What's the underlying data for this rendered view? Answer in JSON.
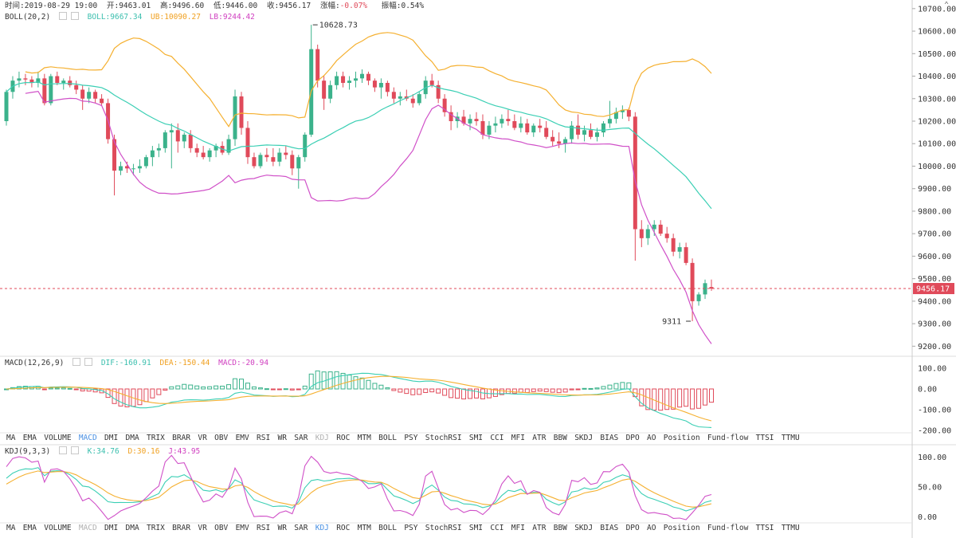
{
  "header": {
    "time_label": "时间:2019-08-29 19:00",
    "open_label": "开:9463.01",
    "high_label": "高:9496.60",
    "low_label": "低:9446.00",
    "close_label": "收:9456.17",
    "change_label": "涨幅:",
    "change_value": "-0.07%",
    "amplitude_label": "振幅:0.54%"
  },
  "boll": {
    "name": "BOLL(20,2)",
    "boll_value": "BOLL:9667.34",
    "ub_value": "UB:10090.27",
    "lb_value": "LB:9244.42"
  },
  "macd": {
    "name": "MACD(12,26,9)",
    "dif_value": "DIF:-160.91",
    "dea_value": "DEA:-150.44",
    "macd_value": "MACD:-20.94",
    "axis": [
      "100.00",
      "0.00",
      "-100.00",
      "-200.00"
    ]
  },
  "kdj": {
    "name": "KDJ(9,3,3)",
    "k_value": "K:34.76",
    "d_value": "D:30.16",
    "j_value": "J:43.95",
    "axis": [
      "100.00",
      "50.00",
      "0.00"
    ]
  },
  "main_axis": [
    "10700.00",
    "10600.00",
    "10500.00",
    "10400.00",
    "10300.00",
    "10200.00",
    "10100.00",
    "10000.00",
    "9900.00",
    "9800.00",
    "9700.00",
    "9600.00",
    "9500.00",
    "9400.00",
    "9300.00",
    "9200.00"
  ],
  "annotations": {
    "max_label": "10628.73",
    "min_label": "9311",
    "last_price": "9456.17"
  },
  "tabs_macd_active": [
    "MA",
    "EMA",
    "VOLUME",
    "MACD",
    "DMI",
    "DMA",
    "TRIX",
    "BRAR",
    "VR",
    "OBV",
    "EMV",
    "RSI",
    "WR",
    "SAR",
    "KDJ",
    "ROC",
    "MTM",
    "BOLL",
    "PSY",
    "StochRSI",
    "SMI",
    "CCI",
    "MFI",
    "ATR",
    "BBW",
    "SKDJ",
    "BIAS",
    "DPO",
    "AO",
    "Position",
    "Fund-flow",
    "TTSI",
    "TTMU"
  ],
  "tabs_kdj_active": [
    "MA",
    "EMA",
    "VOLUME",
    "MACD",
    "DMI",
    "DMA",
    "TRIX",
    "BRAR",
    "VR",
    "OBV",
    "EMV",
    "RSI",
    "WR",
    "SAR",
    "KDJ",
    "ROC",
    "MTM",
    "BOLL",
    "PSY",
    "StochRSI",
    "SMI",
    "CCI",
    "MFI",
    "ATR",
    "BBW",
    "SKDJ",
    "BIAS",
    "DPO",
    "AO",
    "Position",
    "Fund-flow",
    "TTSI",
    "TTMU"
  ],
  "colors": {
    "up": "#3bb28b",
    "down": "#e04a5a",
    "boll_mid": "#3bcfb4",
    "boll_ub": "#f5b030",
    "boll_lb": "#d050c8",
    "accent_tab": "#4a90e2",
    "disabled_tab": "#b0b0b0"
  },
  "chart_data": {
    "type": "candlestick",
    "ylim": [
      9180,
      10710
    ],
    "candles": [
      [
        10200,
        10340,
        10180,
        10330
      ],
      [
        10330,
        10400,
        10300,
        10380
      ],
      [
        10380,
        10420,
        10350,
        10390
      ],
      [
        10390,
        10410,
        10360,
        10385
      ],
      [
        10385,
        10400,
        10350,
        10370
      ],
      [
        10370,
        10420,
        10350,
        10390
      ],
      [
        10390,
        10410,
        10270,
        10280
      ],
      [
        10280,
        10410,
        10270,
        10400
      ],
      [
        10400,
        10420,
        10360,
        10370
      ],
      [
        10370,
        10390,
        10340,
        10380
      ],
      [
        10380,
        10400,
        10350,
        10360
      ],
      [
        10360,
        10380,
        10320,
        10340
      ],
      [
        10340,
        10360,
        10250,
        10300
      ],
      [
        10300,
        10350,
        10280,
        10330
      ],
      [
        10330,
        10340,
        10280,
        10300
      ],
      [
        10300,
        10320,
        10270,
        10280
      ],
      [
        10280,
        10300,
        10100,
        10120
      ],
      [
        10120,
        10140,
        9870,
        9980
      ],
      [
        9980,
        10020,
        9960,
        10000
      ],
      [
        10000,
        10020,
        9970,
        9990
      ],
      [
        9990,
        10010,
        9960,
        9990
      ],
      [
        9990,
        10030,
        9970,
        10000
      ],
      [
        10000,
        10050,
        9990,
        10040
      ],
      [
        10040,
        10090,
        10000,
        10070
      ],
      [
        10070,
        10100,
        10040,
        10080
      ],
      [
        10080,
        10160,
        10060,
        10150
      ],
      [
        10150,
        10190,
        9990,
        10160
      ],
      [
        10160,
        10190,
        10060,
        10110
      ],
      [
        10110,
        10150,
        10080,
        10140
      ],
      [
        10140,
        10160,
        10060,
        10080
      ],
      [
        10080,
        10100,
        10040,
        10060
      ],
      [
        10060,
        10090,
        10030,
        10040
      ],
      [
        10040,
        10080,
        10020,
        10070
      ],
      [
        10070,
        10100,
        10040,
        10090
      ],
      [
        10090,
        10110,
        10050,
        10060
      ],
      [
        10060,
        10140,
        10050,
        10120
      ],
      [
        10120,
        10340,
        10090,
        10310
      ],
      [
        10310,
        10330,
        10140,
        10170
      ],
      [
        10170,
        10200,
        10010,
        10040
      ],
      [
        10040,
        10060,
        9990,
        10000
      ],
      [
        10000,
        10060,
        9990,
        10050
      ],
      [
        10050,
        10080,
        10020,
        10040
      ],
      [
        10040,
        10080,
        10000,
        10020
      ],
      [
        10020,
        10080,
        10000,
        10060
      ],
      [
        10060,
        10090,
        10030,
        10050
      ],
      [
        10050,
        10070,
        9960,
        9990
      ],
      [
        9990,
        10050,
        9900,
        10040
      ],
      [
        10040,
        10150,
        10020,
        10140
      ],
      [
        10140,
        10628,
        10130,
        10520
      ],
      [
        10520,
        10540,
        10350,
        10380
      ],
      [
        10380,
        10400,
        10250,
        10300
      ],
      [
        10300,
        10380,
        10280,
        10360
      ],
      [
        10360,
        10420,
        10340,
        10400
      ],
      [
        10400,
        10420,
        10350,
        10370
      ],
      [
        10370,
        10400,
        10340,
        10380
      ],
      [
        10380,
        10420,
        10350,
        10390
      ],
      [
        10390,
        10430,
        10370,
        10410
      ],
      [
        10410,
        10420,
        10360,
        10380
      ],
      [
        10380,
        10390,
        10330,
        10350
      ],
      [
        10350,
        10390,
        10300,
        10370
      ],
      [
        10370,
        10380,
        10310,
        10330
      ],
      [
        10330,
        10350,
        10280,
        10300
      ],
      [
        10300,
        10330,
        10270,
        10310
      ],
      [
        10310,
        10340,
        10290,
        10300
      ],
      [
        10300,
        10320,
        10260,
        10280
      ],
      [
        10280,
        10330,
        10270,
        10320
      ],
      [
        10320,
        10400,
        10300,
        10380
      ],
      [
        10380,
        10410,
        10350,
        10360
      ],
      [
        10360,
        10380,
        10280,
        10300
      ],
      [
        10300,
        10320,
        10220,
        10240
      ],
      [
        10240,
        10270,
        10160,
        10200
      ],
      [
        10200,
        10240,
        10170,
        10220
      ],
      [
        10220,
        10250,
        10180,
        10190
      ],
      [
        10190,
        10230,
        10160,
        10210
      ],
      [
        10210,
        10240,
        10180,
        10200
      ],
      [
        10200,
        10230,
        10120,
        10140
      ],
      [
        10140,
        10200,
        10120,
        10180
      ],
      [
        10180,
        10220,
        10150,
        10190
      ],
      [
        10190,
        10230,
        10170,
        10210
      ],
      [
        10210,
        10250,
        10180,
        10200
      ],
      [
        10200,
        10230,
        10160,
        10170
      ],
      [
        10170,
        10220,
        10150,
        10190
      ],
      [
        10190,
        10210,
        10140,
        10150
      ],
      [
        10150,
        10190,
        10130,
        10180
      ],
      [
        10180,
        10210,
        10150,
        10170
      ],
      [
        10170,
        10200,
        10120,
        10130
      ],
      [
        10130,
        10160,
        10090,
        10110
      ],
      [
        10110,
        10150,
        10080,
        10100
      ],
      [
        10100,
        10130,
        10060,
        10120
      ],
      [
        10120,
        10200,
        10100,
        10180
      ],
      [
        10180,
        10230,
        10120,
        10140
      ],
      [
        10140,
        10180,
        10110,
        10160
      ],
      [
        10160,
        10190,
        10120,
        10130
      ],
      [
        10130,
        10170,
        10110,
        10150
      ],
      [
        10150,
        10200,
        10130,
        10190
      ],
      [
        10190,
        10290,
        10170,
        10210
      ],
      [
        10210,
        10260,
        10190,
        10240
      ],
      [
        10240,
        10270,
        10210,
        10250
      ],
      [
        10250,
        10260,
        10200,
        10220
      ],
      [
        10220,
        10240,
        9580,
        9720
      ],
      [
        9720,
        9760,
        9640,
        9680
      ],
      [
        9680,
        9740,
        9650,
        9720
      ],
      [
        9720,
        9760,
        9690,
        9740
      ],
      [
        9740,
        9760,
        9690,
        9700
      ],
      [
        9700,
        9730,
        9660,
        9680
      ],
      [
        9680,
        9700,
        9600,
        9620
      ],
      [
        9620,
        9660,
        9590,
        9640
      ],
      [
        9640,
        9660,
        9560,
        9570
      ],
      [
        9570,
        9590,
        9311,
        9400
      ],
      [
        9400,
        9440,
        9380,
        9430
      ],
      [
        9430,
        9496,
        9410,
        9480
      ],
      [
        9463,
        9496,
        9446,
        9456
      ]
    ]
  }
}
